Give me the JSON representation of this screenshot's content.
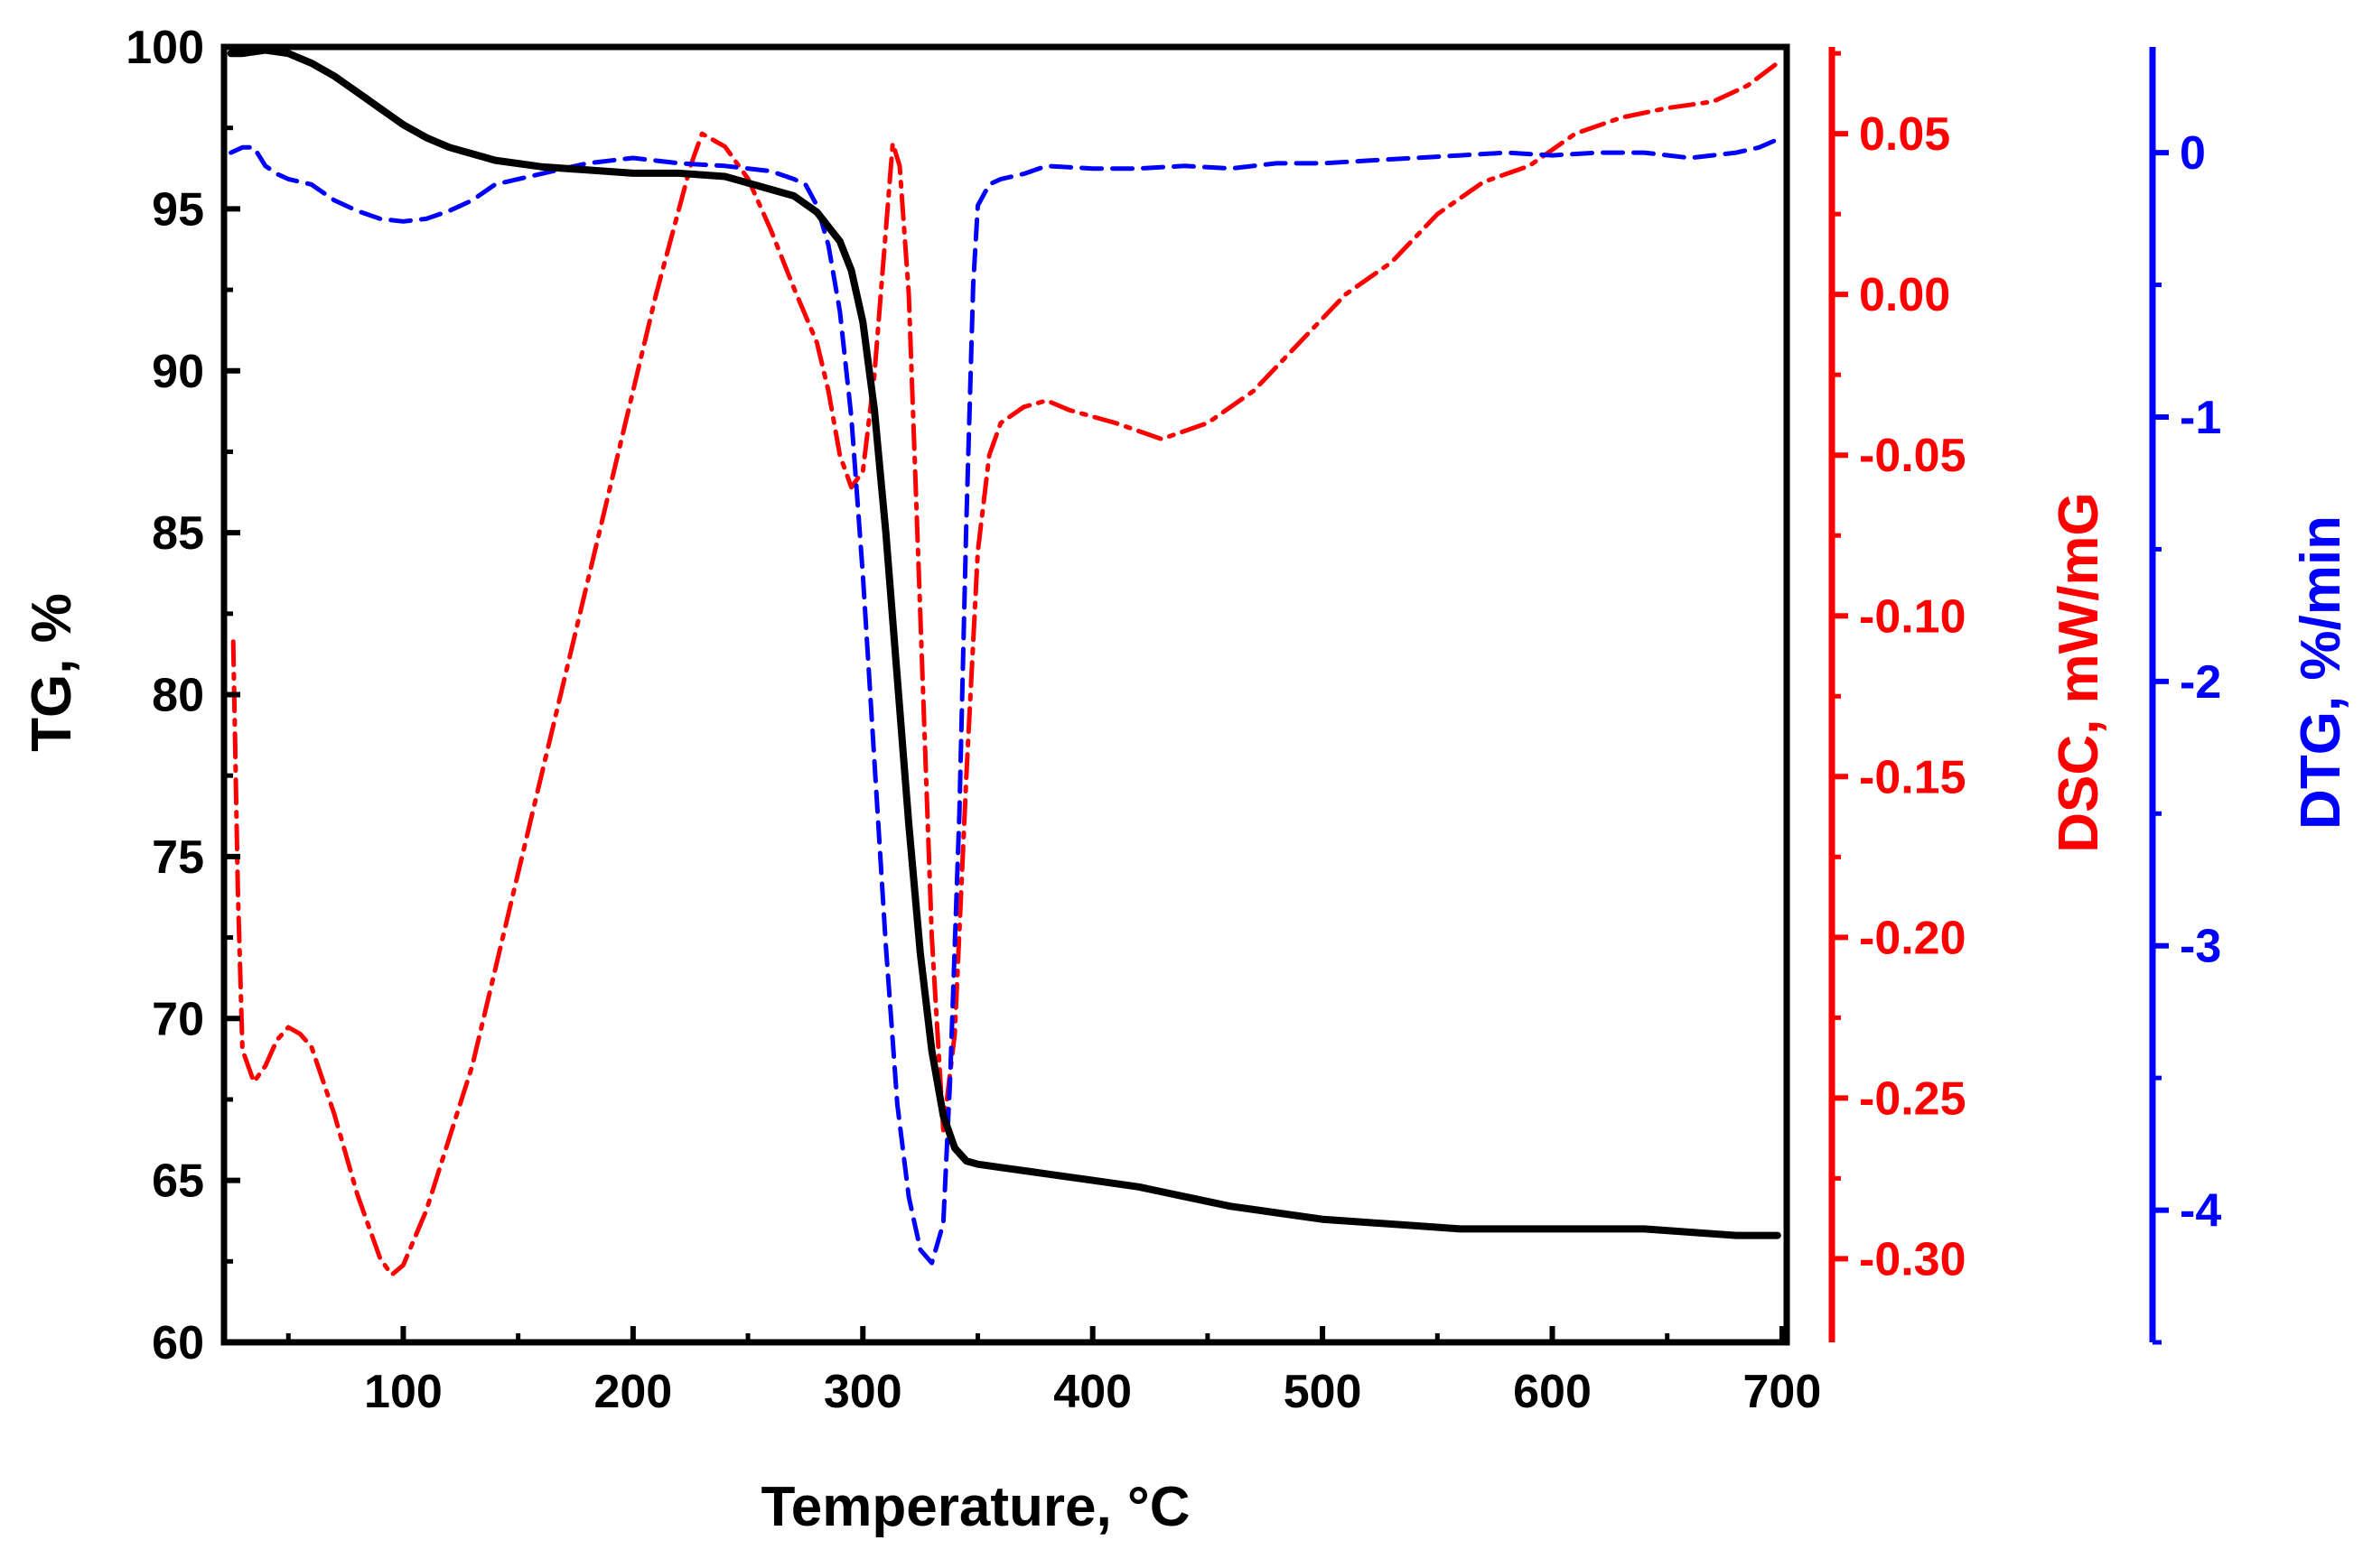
{
  "chart_data": {
    "type": "line",
    "title": "",
    "xlabel": "Temperature, °C",
    "xlim": [
      22,
      702
    ],
    "xticks": [
      100,
      200,
      300,
      400,
      500,
      600,
      700
    ],
    "axes": {
      "tg": {
        "label": "TG, %",
        "color": "#000000",
        "ylim": [
          60,
          100
        ],
        "ticks": [
          60,
          65,
          70,
          75,
          80,
          85,
          90,
          95,
          100
        ]
      },
      "dsc": {
        "label": "DSC, mW/mG",
        "color": "#ff0000",
        "ylim": [
          -0.326,
          0.077
        ],
        "ticks": [
          0.05,
          0.0,
          -0.05,
          -0.1,
          -0.15,
          -0.2,
          -0.25,
          -0.3
        ],
        "tick_labels": [
          "0.05",
          "0.00",
          "-0.05",
          "-0.10",
          "-0.15",
          "-0.20",
          "-0.25",
          "-0.30"
        ]
      },
      "dtg": {
        "label": "DTG, %/min",
        "color": "#0000ff",
        "ylim": [
          -4.5,
          0.4
        ],
        "ticks": [
          0,
          -1,
          -2,
          -3,
          -4
        ],
        "tick_labels": [
          "0",
          "-1",
          "-2",
          "-3",
          "-4"
        ]
      }
    },
    "series": [
      {
        "name": "TG",
        "axis": "tg",
        "style": "solid",
        "x": [
          25,
          30,
          40,
          50,
          60,
          70,
          80,
          90,
          100,
          110,
          120,
          130,
          140,
          150,
          160,
          180,
          200,
          220,
          240,
          250,
          260,
          270,
          280,
          290,
          295,
          300,
          305,
          310,
          315,
          320,
          325,
          330,
          335,
          340,
          345,
          350,
          360,
          380,
          400,
          420,
          440,
          460,
          480,
          500,
          520,
          540,
          560,
          580,
          600,
          620,
          640,
          660,
          680,
          690,
          698
        ],
        "values": [
          99.8,
          99.8,
          99.9,
          99.8,
          99.5,
          99.1,
          98.6,
          98.1,
          97.6,
          97.2,
          96.9,
          96.7,
          96.5,
          96.4,
          96.3,
          96.2,
          96.1,
          96.1,
          96.0,
          95.8,
          95.6,
          95.4,
          94.9,
          94.0,
          93.1,
          91.5,
          88.8,
          85.0,
          80.5,
          76.0,
          72.0,
          69.0,
          67.0,
          66.0,
          65.6,
          65.5,
          65.4,
          65.2,
          65.0,
          64.8,
          64.5,
          64.2,
          64.0,
          63.8,
          63.7,
          63.6,
          63.5,
          63.5,
          63.5,
          63.5,
          63.5,
          63.4,
          63.3,
          63.3,
          63.3
        ]
      },
      {
        "name": "DSC",
        "axis": "dsc",
        "style": "dash-dot",
        "x": [
          26,
          28,
          30,
          35,
          40,
          45,
          50,
          55,
          60,
          70,
          80,
          90,
          95,
          100,
          110,
          130,
          150,
          170,
          190,
          210,
          225,
          230,
          240,
          250,
          260,
          270,
          280,
          285,
          290,
          295,
          300,
          305,
          310,
          313,
          316,
          320,
          325,
          330,
          335,
          340,
          345,
          350,
          355,
          360,
          370,
          380,
          390,
          410,
          430,
          450,
          470,
          490,
          510,
          530,
          550,
          570,
          590,
          610,
          630,
          650,
          670,
          685,
          698
        ],
        "values": [
          -0.108,
          -0.185,
          -0.235,
          -0.245,
          -0.24,
          -0.232,
          -0.228,
          -0.23,
          -0.234,
          -0.255,
          -0.28,
          -0.3,
          -0.305,
          -0.302,
          -0.285,
          -0.24,
          -0.18,
          -0.12,
          -0.06,
          0.0,
          0.04,
          0.05,
          0.046,
          0.036,
          0.02,
          0.002,
          -0.015,
          -0.03,
          -0.05,
          -0.06,
          -0.055,
          -0.025,
          0.02,
          0.047,
          0.04,
          0.0,
          -0.1,
          -0.2,
          -0.26,
          -0.23,
          -0.15,
          -0.08,
          -0.05,
          -0.04,
          -0.035,
          -0.033,
          -0.036,
          -0.04,
          -0.045,
          -0.04,
          -0.03,
          -0.015,
          0.0,
          0.01,
          0.025,
          0.035,
          0.04,
          0.05,
          0.055,
          0.058,
          0.06,
          0.065,
          0.072
        ]
      },
      {
        "name": "DTG",
        "axis": "dtg",
        "style": "dashed",
        "x": [
          25,
          30,
          35,
          40,
          45,
          50,
          60,
          70,
          80,
          90,
          100,
          110,
          120,
          130,
          140,
          150,
          160,
          180,
          200,
          220,
          240,
          260,
          270,
          275,
          280,
          285,
          290,
          295,
          300,
          305,
          310,
          315,
          320,
          325,
          330,
          335,
          338,
          342,
          345,
          348,
          350,
          355,
          360,
          370,
          380,
          400,
          420,
          440,
          460,
          480,
          500,
          520,
          540,
          560,
          580,
          600,
          620,
          640,
          660,
          680,
          690,
          698
        ],
        "values": [
          0.0,
          0.02,
          0.02,
          -0.05,
          -0.08,
          -0.1,
          -0.12,
          -0.18,
          -0.22,
          -0.25,
          -0.26,
          -0.25,
          -0.22,
          -0.18,
          -0.12,
          -0.1,
          -0.08,
          -0.04,
          -0.02,
          -0.04,
          -0.05,
          -0.07,
          -0.1,
          -0.12,
          -0.2,
          -0.35,
          -0.6,
          -1.0,
          -1.6,
          -2.3,
          -3.0,
          -3.6,
          -3.95,
          -4.15,
          -4.2,
          -4.05,
          -3.5,
          -2.5,
          -1.4,
          -0.5,
          -0.2,
          -0.12,
          -0.1,
          -0.08,
          -0.05,
          -0.06,
          -0.06,
          -0.05,
          -0.06,
          -0.04,
          -0.04,
          -0.03,
          -0.02,
          -0.01,
          0.0,
          -0.01,
          0.0,
          0.0,
          -0.02,
          0.0,
          0.02,
          0.05
        ]
      }
    ]
  }
}
